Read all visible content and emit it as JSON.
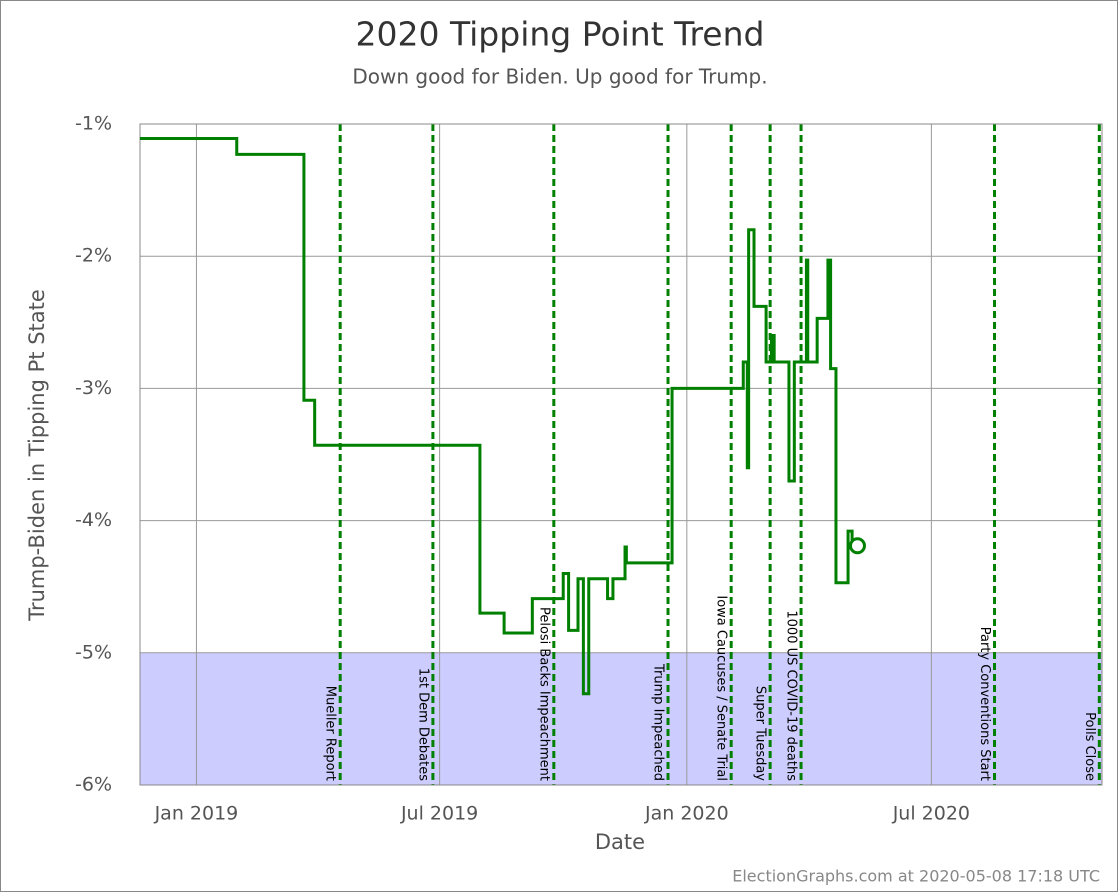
{
  "chart_data": {
    "type": "line",
    "title": "2020 Tipping Point Trend",
    "subtitle": "Down good for Biden. Up good for Trump.",
    "x_label": "Date",
    "y_label": "Trump-Biden in Tipping Pt State",
    "footer": "ElectionGraphs.com at 2020-05-08 17:18 UTC",
    "xlim": [
      "2018-11-20",
      "2020-11-05"
    ],
    "xticks": [
      {
        "value": "2019-01-01",
        "label": "Jan 2019"
      },
      {
        "value": "2019-07-01",
        "label": "Jul 2019"
      },
      {
        "value": "2020-01-01",
        "label": "Jan 2020"
      },
      {
        "value": "2020-07-01",
        "label": "Jul 2020"
      }
    ],
    "ylim": [
      -6,
      -1
    ],
    "yticks": [
      {
        "value": -1,
        "label": "-1%"
      },
      {
        "value": -2,
        "label": "-2%"
      },
      {
        "value": -3,
        "label": "-3%"
      },
      {
        "value": -4,
        "label": "-4%"
      },
      {
        "value": -5,
        "label": "-5%"
      },
      {
        "value": -6,
        "label": "-6%"
      }
    ],
    "grid": true,
    "shaded_region": {
      "ylim": [
        -6,
        -5
      ],
      "color": "#ccccff"
    },
    "color": "#008000",
    "x": [
      "2018-11-20",
      "2019-01-31",
      "2019-03-22",
      "2019-03-30",
      "2019-07-31",
      "2019-08-18",
      "2019-09-08",
      "2019-10-01",
      "2019-10-05",
      "2019-10-12",
      "2019-10-16",
      "2019-10-20",
      "2019-11-03",
      "2019-11-07",
      "2019-11-16",
      "2019-11-17",
      "2019-12-21",
      "2020-02-12",
      "2020-02-15",
      "2020-02-16",
      "2020-02-20",
      "2020-02-29",
      "2020-03-04",
      "2020-03-06",
      "2020-03-17",
      "2020-03-21",
      "2020-03-30",
      "2020-03-31",
      "2020-04-01",
      "2020-04-07",
      "2020-04-15",
      "2020-04-17",
      "2020-04-20",
      "2020-04-21",
      "2020-04-30",
      "2020-05-03",
      "2020-05-07"
    ],
    "values": [
      -1.11,
      -1.23,
      -3.09,
      -3.43,
      -4.7,
      -4.85,
      -4.59,
      -4.4,
      -4.83,
      -4.44,
      -5.31,
      -4.44,
      -4.59,
      -4.44,
      -4.2,
      -4.32,
      -3.0,
      -2.8,
      -3.6,
      -1.8,
      -2.38,
      -2.8,
      -2.6,
      -2.8,
      -3.7,
      -2.8,
      -2.03,
      -2.8,
      -2.8,
      -2.47,
      -2.03,
      -2.85,
      -2.85,
      -4.47,
      -4.08,
      -4.17,
      -4.19
    ],
    "events": [
      {
        "date": "2019-04-18",
        "label": "Mueller Report"
      },
      {
        "date": "2019-06-26",
        "label": "1st Dem Debates"
      },
      {
        "date": "2019-09-24",
        "label": "Pelosi Backs Impeachment"
      },
      {
        "date": "2019-12-18",
        "label": "Trump Impeached"
      },
      {
        "date": "2020-02-03",
        "label": "Iowa Caucuses / Senate Trial"
      },
      {
        "date": "2020-03-03",
        "label": "Super Tuesday"
      },
      {
        "date": "2020-03-26",
        "label": "1000 US COVID-19 deaths"
      },
      {
        "date": "2020-08-17",
        "label": "Party Conventions Start"
      },
      {
        "date": "2020-11-03",
        "label": "Polls Close"
      }
    ]
  }
}
